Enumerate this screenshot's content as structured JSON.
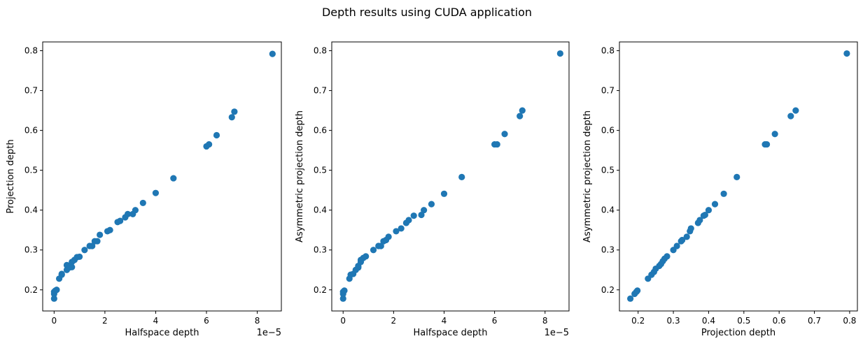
{
  "figure": {
    "title": "Depth results using CUDA application",
    "marker_color": "#1f77b4"
  },
  "chart_data": [
    {
      "type": "scatter",
      "xlabel": "Halfspace depth",
      "ylabel": "Projection depth",
      "x_offset_text": "1e−5",
      "xlim": [
        -0.45,
        8.95
      ],
      "ylim": [
        0.147,
        0.822
      ],
      "xticks": [
        0,
        2,
        4,
        6,
        8
      ],
      "xtick_labels": [
        "0",
        "2",
        "4",
        "6",
        "8"
      ],
      "yticks": [
        0.2,
        0.3,
        0.4,
        0.5,
        0.6,
        0.7,
        0.8
      ],
      "ytick_labels": [
        "0.2",
        "0.3",
        "0.4",
        "0.5",
        "0.6",
        "0.7",
        "0.8"
      ],
      "x": [
        0.0,
        0.0,
        0.0,
        0.05,
        0.1,
        0.2,
        0.3,
        0.3,
        0.5,
        0.5,
        0.6,
        0.7,
        0.7,
        0.8,
        0.9,
        1.0,
        1.2,
        1.4,
        1.5,
        1.6,
        1.7,
        1.8,
        2.1,
        2.2,
        2.5,
        2.6,
        2.8,
        2.9,
        3.1,
        3.2,
        3.5,
        4.0,
        4.7,
        6.0,
        6.1,
        6.4,
        7.0,
        7.1,
        8.6
      ],
      "y": [
        0.178,
        0.19,
        0.195,
        0.198,
        0.2,
        0.228,
        0.238,
        0.24,
        0.25,
        0.262,
        0.256,
        0.27,
        0.257,
        0.275,
        0.282,
        0.283,
        0.3,
        0.31,
        0.31,
        0.322,
        0.322,
        0.338,
        0.347,
        0.35,
        0.37,
        0.373,
        0.382,
        0.39,
        0.39,
        0.4,
        0.418,
        0.443,
        0.48,
        0.56,
        0.565,
        0.588,
        0.633,
        0.647,
        0.792
      ]
    },
    {
      "type": "scatter",
      "xlabel": "Halfspace depth",
      "ylabel": "Asymmetric projection depth",
      "x_offset_text": "1e−5",
      "xlim": [
        -0.45,
        8.95
      ],
      "ylim": [
        0.147,
        0.822
      ],
      "xticks": [
        0,
        2,
        4,
        6,
        8
      ],
      "xtick_labels": [
        "0",
        "2",
        "4",
        "6",
        "8"
      ],
      "yticks": [
        0.2,
        0.3,
        0.4,
        0.5,
        0.6,
        0.7,
        0.8
      ],
      "ytick_labels": [
        "0.2",
        "0.3",
        "0.4",
        "0.5",
        "0.6",
        "0.7",
        "0.8"
      ],
      "x": [
        0.0,
        0.0,
        0.0,
        0.05,
        0.25,
        0.3,
        0.4,
        0.5,
        0.6,
        0.6,
        0.7,
        0.7,
        0.8,
        0.9,
        1.2,
        1.4,
        1.5,
        1.6,
        1.7,
        1.8,
        2.1,
        2.3,
        2.5,
        2.6,
        2.8,
        3.1,
        3.2,
        3.5,
        4.0,
        4.7,
        6.0,
        6.1,
        6.4,
        7.0,
        7.1,
        8.6
      ],
      "y": [
        0.178,
        0.19,
        0.195,
        0.198,
        0.228,
        0.238,
        0.24,
        0.25,
        0.26,
        0.256,
        0.27,
        0.275,
        0.28,
        0.284,
        0.3,
        0.31,
        0.31,
        0.322,
        0.325,
        0.333,
        0.347,
        0.354,
        0.368,
        0.375,
        0.386,
        0.388,
        0.4,
        0.415,
        0.441,
        0.483,
        0.565,
        0.565,
        0.591,
        0.636,
        0.65,
        0.793
      ]
    },
    {
      "type": "scatter",
      "xlabel": "Projection depth",
      "ylabel": "Asymmetric projection depth",
      "x_offset_text": "",
      "xlim": [
        0.147,
        0.822
      ],
      "ylim": [
        0.147,
        0.822
      ],
      "xticks": [
        0.2,
        0.3,
        0.4,
        0.5,
        0.6,
        0.7,
        0.8
      ],
      "xtick_labels": [
        "0.2",
        "0.3",
        "0.4",
        "0.5",
        "0.6",
        "0.7",
        "0.8"
      ],
      "yticks": [
        0.2,
        0.3,
        0.4,
        0.5,
        0.6,
        0.7,
        0.8
      ],
      "ytick_labels": [
        "0.2",
        "0.3",
        "0.4",
        "0.5",
        "0.6",
        "0.7",
        "0.8"
      ],
      "x": [
        0.178,
        0.19,
        0.195,
        0.198,
        0.228,
        0.238,
        0.245,
        0.25,
        0.26,
        0.265,
        0.27,
        0.275,
        0.282,
        0.3,
        0.31,
        0.322,
        0.325,
        0.338,
        0.347,
        0.35,
        0.37,
        0.375,
        0.386,
        0.39,
        0.4,
        0.418,
        0.443,
        0.48,
        0.56,
        0.565,
        0.588,
        0.633,
        0.647,
        0.792
      ],
      "y": [
        0.178,
        0.19,
        0.195,
        0.198,
        0.228,
        0.238,
        0.245,
        0.253,
        0.26,
        0.265,
        0.272,
        0.278,
        0.284,
        0.3,
        0.31,
        0.322,
        0.325,
        0.333,
        0.347,
        0.354,
        0.368,
        0.375,
        0.386,
        0.388,
        0.4,
        0.415,
        0.441,
        0.483,
        0.565,
        0.565,
        0.591,
        0.636,
        0.65,
        0.793
      ]
    }
  ]
}
